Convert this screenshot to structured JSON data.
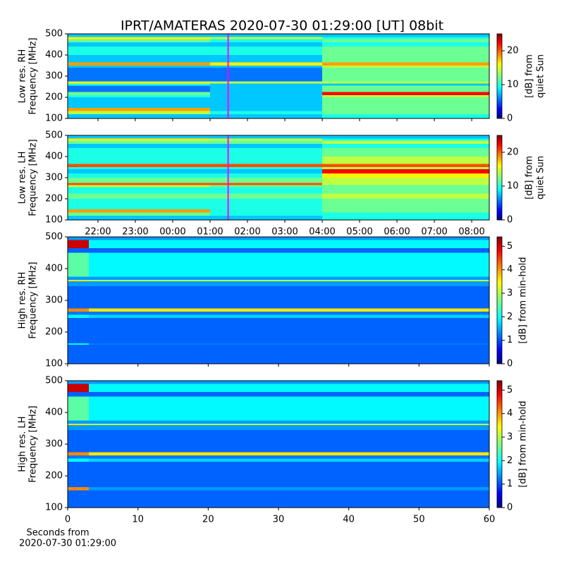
{
  "chart_data": [
    {
      "type": "heatmap",
      "title": "IPRT/AMATERAS 2020-07-30 01:29:00 [UT]   08bit",
      "ylabel": [
        "Low res. RH",
        "Frequency [MHz]"
      ],
      "colorbar_label": [
        "[dB] from",
        "quiet Sun"
      ],
      "colormap": "jet",
      "x": [
        21.19,
        25,
        28,
        32.47
      ],
      "y": [
        100,
        120,
        135,
        150,
        200,
        210,
        225,
        255,
        265,
        275,
        340,
        350,
        365,
        400,
        440,
        460,
        475,
        485,
        500
      ],
      "z": [
        [
          8,
          8,
          10
        ],
        [
          14,
          10,
          12
        ],
        [
          18,
          8,
          12
        ],
        [
          8,
          8,
          12
        ],
        [
          10,
          8,
          14
        ],
        [
          12,
          8,
          22
        ],
        [
          6,
          8,
          12
        ],
        [
          10,
          8,
          8
        ],
        [
          16,
          14,
          14
        ],
        [
          6,
          6,
          12
        ],
        [
          8,
          8,
          14
        ],
        [
          18,
          16,
          18
        ],
        [
          8,
          8,
          12
        ],
        [
          10,
          10,
          12
        ],
        [
          8,
          8,
          10
        ],
        [
          12,
          10,
          12
        ],
        [
          16,
          14,
          10
        ],
        [
          8,
          8,
          8
        ]
      ],
      "xlim": [
        21.19,
        32.47
      ],
      "ylim": [
        100,
        500
      ],
      "yticks": [
        100,
        200,
        300,
        400,
        500
      ],
      "clim": [
        0,
        25
      ],
      "cticks": [
        0,
        10,
        20
      ],
      "vline": 25.4833,
      "vline_color": "#ff00ff"
    },
    {
      "type": "heatmap",
      "ylabel": [
        "Low res. LH",
        "Frequency [MHz]"
      ],
      "colorbar_label": [
        "[dB] from",
        "quiet Sun"
      ],
      "colormap": "jet",
      "x": [
        21.19,
        25,
        28,
        32.47
      ],
      "y": [
        100,
        120,
        135,
        150,
        200,
        225,
        255,
        265,
        275,
        300,
        320,
        340,
        350,
        365,
        400,
        440,
        460,
        475,
        485,
        500
      ],
      "z": [
        [
          8,
          8,
          10
        ],
        [
          12,
          10,
          10
        ],
        [
          18,
          10,
          12
        ],
        [
          10,
          10,
          12
        ],
        [
          12,
          12,
          14
        ],
        [
          10,
          10,
          12
        ],
        [
          14,
          12,
          12
        ],
        [
          20,
          20,
          14
        ],
        [
          12,
          12,
          14
        ],
        [
          10,
          10,
          16
        ],
        [
          8,
          8,
          22
        ],
        [
          10,
          10,
          14
        ],
        [
          20,
          20,
          20
        ],
        [
          10,
          10,
          14
        ],
        [
          10,
          10,
          12
        ],
        [
          8,
          8,
          10
        ],
        [
          12,
          12,
          14
        ],
        [
          16,
          14,
          10
        ],
        [
          8,
          8,
          8
        ]
      ],
      "xlim": [
        21.19,
        32.47
      ],
      "ylim": [
        100,
        500
      ],
      "yticks": [
        100,
        200,
        300,
        400,
        500
      ],
      "clim": [
        0,
        25
      ],
      "cticks": [
        0,
        10,
        20
      ],
      "vline": 25.4833,
      "vline_color": "#ff00ff",
      "xticks": [
        {
          "value": 22,
          "label": "22:00"
        },
        {
          "value": 23,
          "label": "23:00"
        },
        {
          "value": 24,
          "label": "00:00"
        },
        {
          "value": 25,
          "label": "01:00"
        },
        {
          "value": 26,
          "label": "02:00"
        },
        {
          "value": 27,
          "label": "03:00"
        },
        {
          "value": 28,
          "label": "04:00"
        },
        {
          "value": 29,
          "label": "05:00"
        },
        {
          "value": 30,
          "label": "06:00"
        },
        {
          "value": 31,
          "label": "07:00"
        },
        {
          "value": 32,
          "label": "08:00"
        }
      ]
    },
    {
      "type": "heatmap",
      "ylabel": [
        "High res. RH",
        "Frequency [MHz]"
      ],
      "colorbar_label": [
        "[dB] from min-hold"
      ],
      "colormap": "jet",
      "x": [
        0,
        3,
        60
      ],
      "y": [
        100,
        160,
        165,
        245,
        255,
        265,
        275,
        345,
        360,
        365,
        375,
        450,
        465,
        490,
        500
      ],
      "z": [
        [
          1.2,
          1.2
        ],
        [
          2,
          1.3
        ],
        [
          1.2,
          1.2
        ],
        [
          2,
          1.8
        ],
        [
          1.3,
          1.3
        ],
        [
          4,
          3.5
        ],
        [
          1.2,
          1.2
        ],
        [
          1.5,
          1.5
        ],
        [
          3.5,
          3
        ],
        [
          1.5,
          1.5
        ],
        [
          2.5,
          2
        ],
        [
          1.2,
          1.2
        ],
        [
          5,
          2
        ],
        [
          1.5,
          1.5
        ]
      ],
      "xlim": [
        0,
        60
      ],
      "ylim": [
        100,
        500
      ],
      "yticks": [
        100,
        200,
        300,
        400,
        500
      ],
      "clim": [
        0,
        5.4
      ],
      "cticks": [
        0,
        1,
        2,
        3,
        4,
        5
      ]
    },
    {
      "type": "heatmap",
      "ylabel": [
        "High res. LH",
        "Frequency [MHz]"
      ],
      "colorbar_label": [
        "[dB] from min-hold"
      ],
      "xlabel": [
        "Seconds from",
        "2020-07-30 01:29:00"
      ],
      "colormap": "jet",
      "x": [
        0,
        3,
        60
      ],
      "y": [
        100,
        155,
        165,
        245,
        255,
        265,
        275,
        345,
        360,
        365,
        375,
        450,
        465,
        490,
        500
      ],
      "z": [
        [
          1.2,
          1.2
        ],
        [
          4,
          1.5
        ],
        [
          1.2,
          1.2
        ],
        [
          2,
          1.8
        ],
        [
          1.3,
          1.3
        ],
        [
          4,
          3.5
        ],
        [
          1.2,
          1.2
        ],
        [
          1.5,
          1.5
        ],
        [
          3.5,
          3
        ],
        [
          1.5,
          1.5
        ],
        [
          2.5,
          2
        ],
        [
          1.2,
          1.2
        ],
        [
          5,
          2
        ],
        [
          1.5,
          1.5
        ]
      ],
      "xlim": [
        0,
        60
      ],
      "ylim": [
        100,
        500
      ],
      "yticks": [
        100,
        200,
        300,
        400,
        500
      ],
      "clim": [
        0,
        5.4
      ],
      "cticks": [
        0,
        1,
        2,
        3,
        4,
        5
      ],
      "xticks": [
        0,
        10,
        20,
        30,
        40,
        50,
        60
      ]
    }
  ]
}
